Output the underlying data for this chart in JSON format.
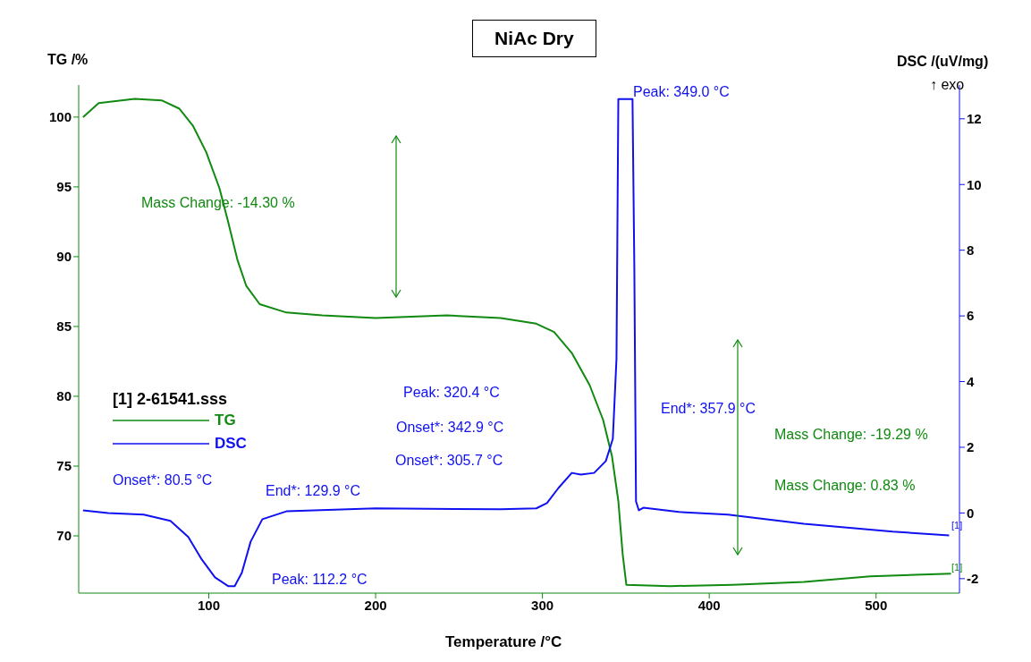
{
  "chart_data": {
    "type": "line",
    "title": "NiAc Dry",
    "xlabel": "Temperature /°C",
    "ylabel": "TG /%",
    "y2label": "DSC /(uV/mg)",
    "legend_title": "[1] 2-61541.sss",
    "legend": "left",
    "marker": "none",
    "line_style": "solid",
    "xlim": [
      22,
      550
    ],
    "xticks": [
      100,
      200,
      300,
      400,
      500
    ],
    "ylim": [
      65.9,
      102.3
    ],
    "yticks": [
      70,
      75,
      80,
      85,
      90,
      95,
      100
    ],
    "y2lim": [
      -2.44,
      13.03
    ],
    "y2ticks": [
      -2,
      0,
      2,
      4,
      6,
      8,
      10,
      12
    ],
    "series": [
      {
        "name": "TG",
        "color": "#108a10",
        "x": [
          24.6,
          34,
          55.6,
          71.7,
          82.4,
          90.4,
          98.4,
          106.4,
          111.8,
          117.1,
          122.5,
          130.5,
          146.5,
          167.9,
          200,
          242.8,
          274.9,
          296.3,
          307,
          317.6,
          328.3,
          336.4,
          341.7,
          345.5,
          348.1,
          350.3,
          376.5,
          413.9,
          456.7,
          496.5,
          544.9
        ],
        "values": [
          100.0,
          101.0,
          101.3,
          101.2,
          100.6,
          99.4,
          97.5,
          94.9,
          92.4,
          89.8,
          87.9,
          86.6,
          86.0,
          85.8,
          85.6,
          85.8,
          85.6,
          85.2,
          84.6,
          83.1,
          80.8,
          78.3,
          75.7,
          72.5,
          68.7,
          66.5,
          66.4,
          66.5,
          66.7,
          67.1,
          67.3
        ]
      },
      {
        "name": "DSC",
        "color": "#1010f0",
        "axis": "y2",
        "x": [
          24.6,
          39.6,
          61,
          77,
          87.7,
          95.7,
          103.7,
          111.8,
          115.5,
          119.8,
          125.1,
          132.1,
          146.5,
          200,
          274.9,
          296.3,
          302.7,
          309.6,
          317.6,
          323,
          331,
          338,
          342.2,
          344.4,
          345.5,
          354,
          355.1,
          356.1,
          357.8,
          360.5,
          381.8,
          411.2,
          456.7,
          510,
          543.8
        ],
        "values": [
          0.08,
          0,
          -0.05,
          -0.24,
          -0.73,
          -1.41,
          -1.96,
          -2.23,
          -2.23,
          -1.82,
          -0.87,
          -0.19,
          0.05,
          0.14,
          0.11,
          0.14,
          0.3,
          0.76,
          1.22,
          1.17,
          1.22,
          1.58,
          2.26,
          4.7,
          12.6,
          12.6,
          7.43,
          0.35,
          0.08,
          0.16,
          0.03,
          -0.05,
          -0.33,
          -0.57,
          -0.68
        ]
      }
    ],
    "annotations": [
      "Mass Change: -14.30 %",
      "Peak: 349.0 °C",
      "Peak: 320.4 °C",
      "Onset*: 342.9 °C",
      "Onset*: 305.7 °C",
      "End*: 357.9 °C",
      "Mass Change: -19.29 %",
      "Mass Change: 0.83 %",
      "Onset*: 80.5 °C",
      "End*: 129.9 °C",
      "Peak: 112.2 °C",
      "[1]",
      "[1]",
      "↑ exo"
    ]
  }
}
